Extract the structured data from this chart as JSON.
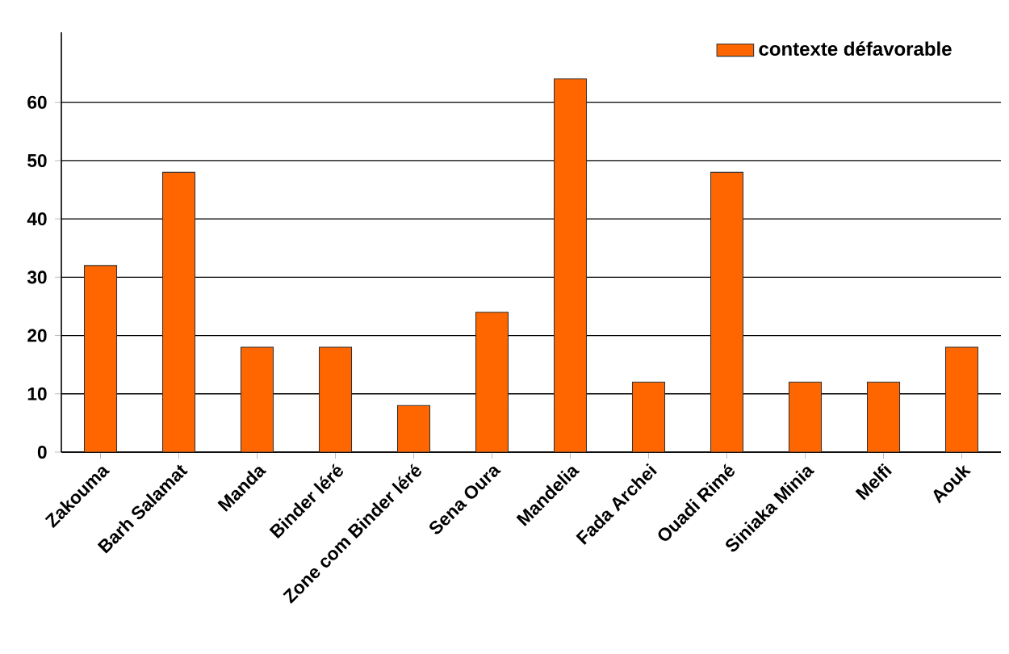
{
  "chart_data": {
    "type": "bar",
    "categories": [
      "Zakouma",
      "Barh Salamat",
      "Manda",
      "Binder léré",
      "Zone com Binder léré",
      "Sena Oura",
      "Mandelia",
      "Fada Archei",
      "Ouadi Rimé",
      "Siniaka Minia",
      "Melfi",
      "Aouk"
    ],
    "series": [
      {
        "name": "contexte défavorable",
        "color": "#ff6600",
        "values": [
          32,
          48,
          18,
          18,
          8,
          24,
          64,
          12,
          48,
          12,
          12,
          18
        ]
      }
    ],
    "ylim": [
      0,
      72
    ],
    "yticks": [
      0,
      10,
      20,
      30,
      40,
      50,
      60
    ],
    "grid": "y",
    "legend": "top right"
  }
}
